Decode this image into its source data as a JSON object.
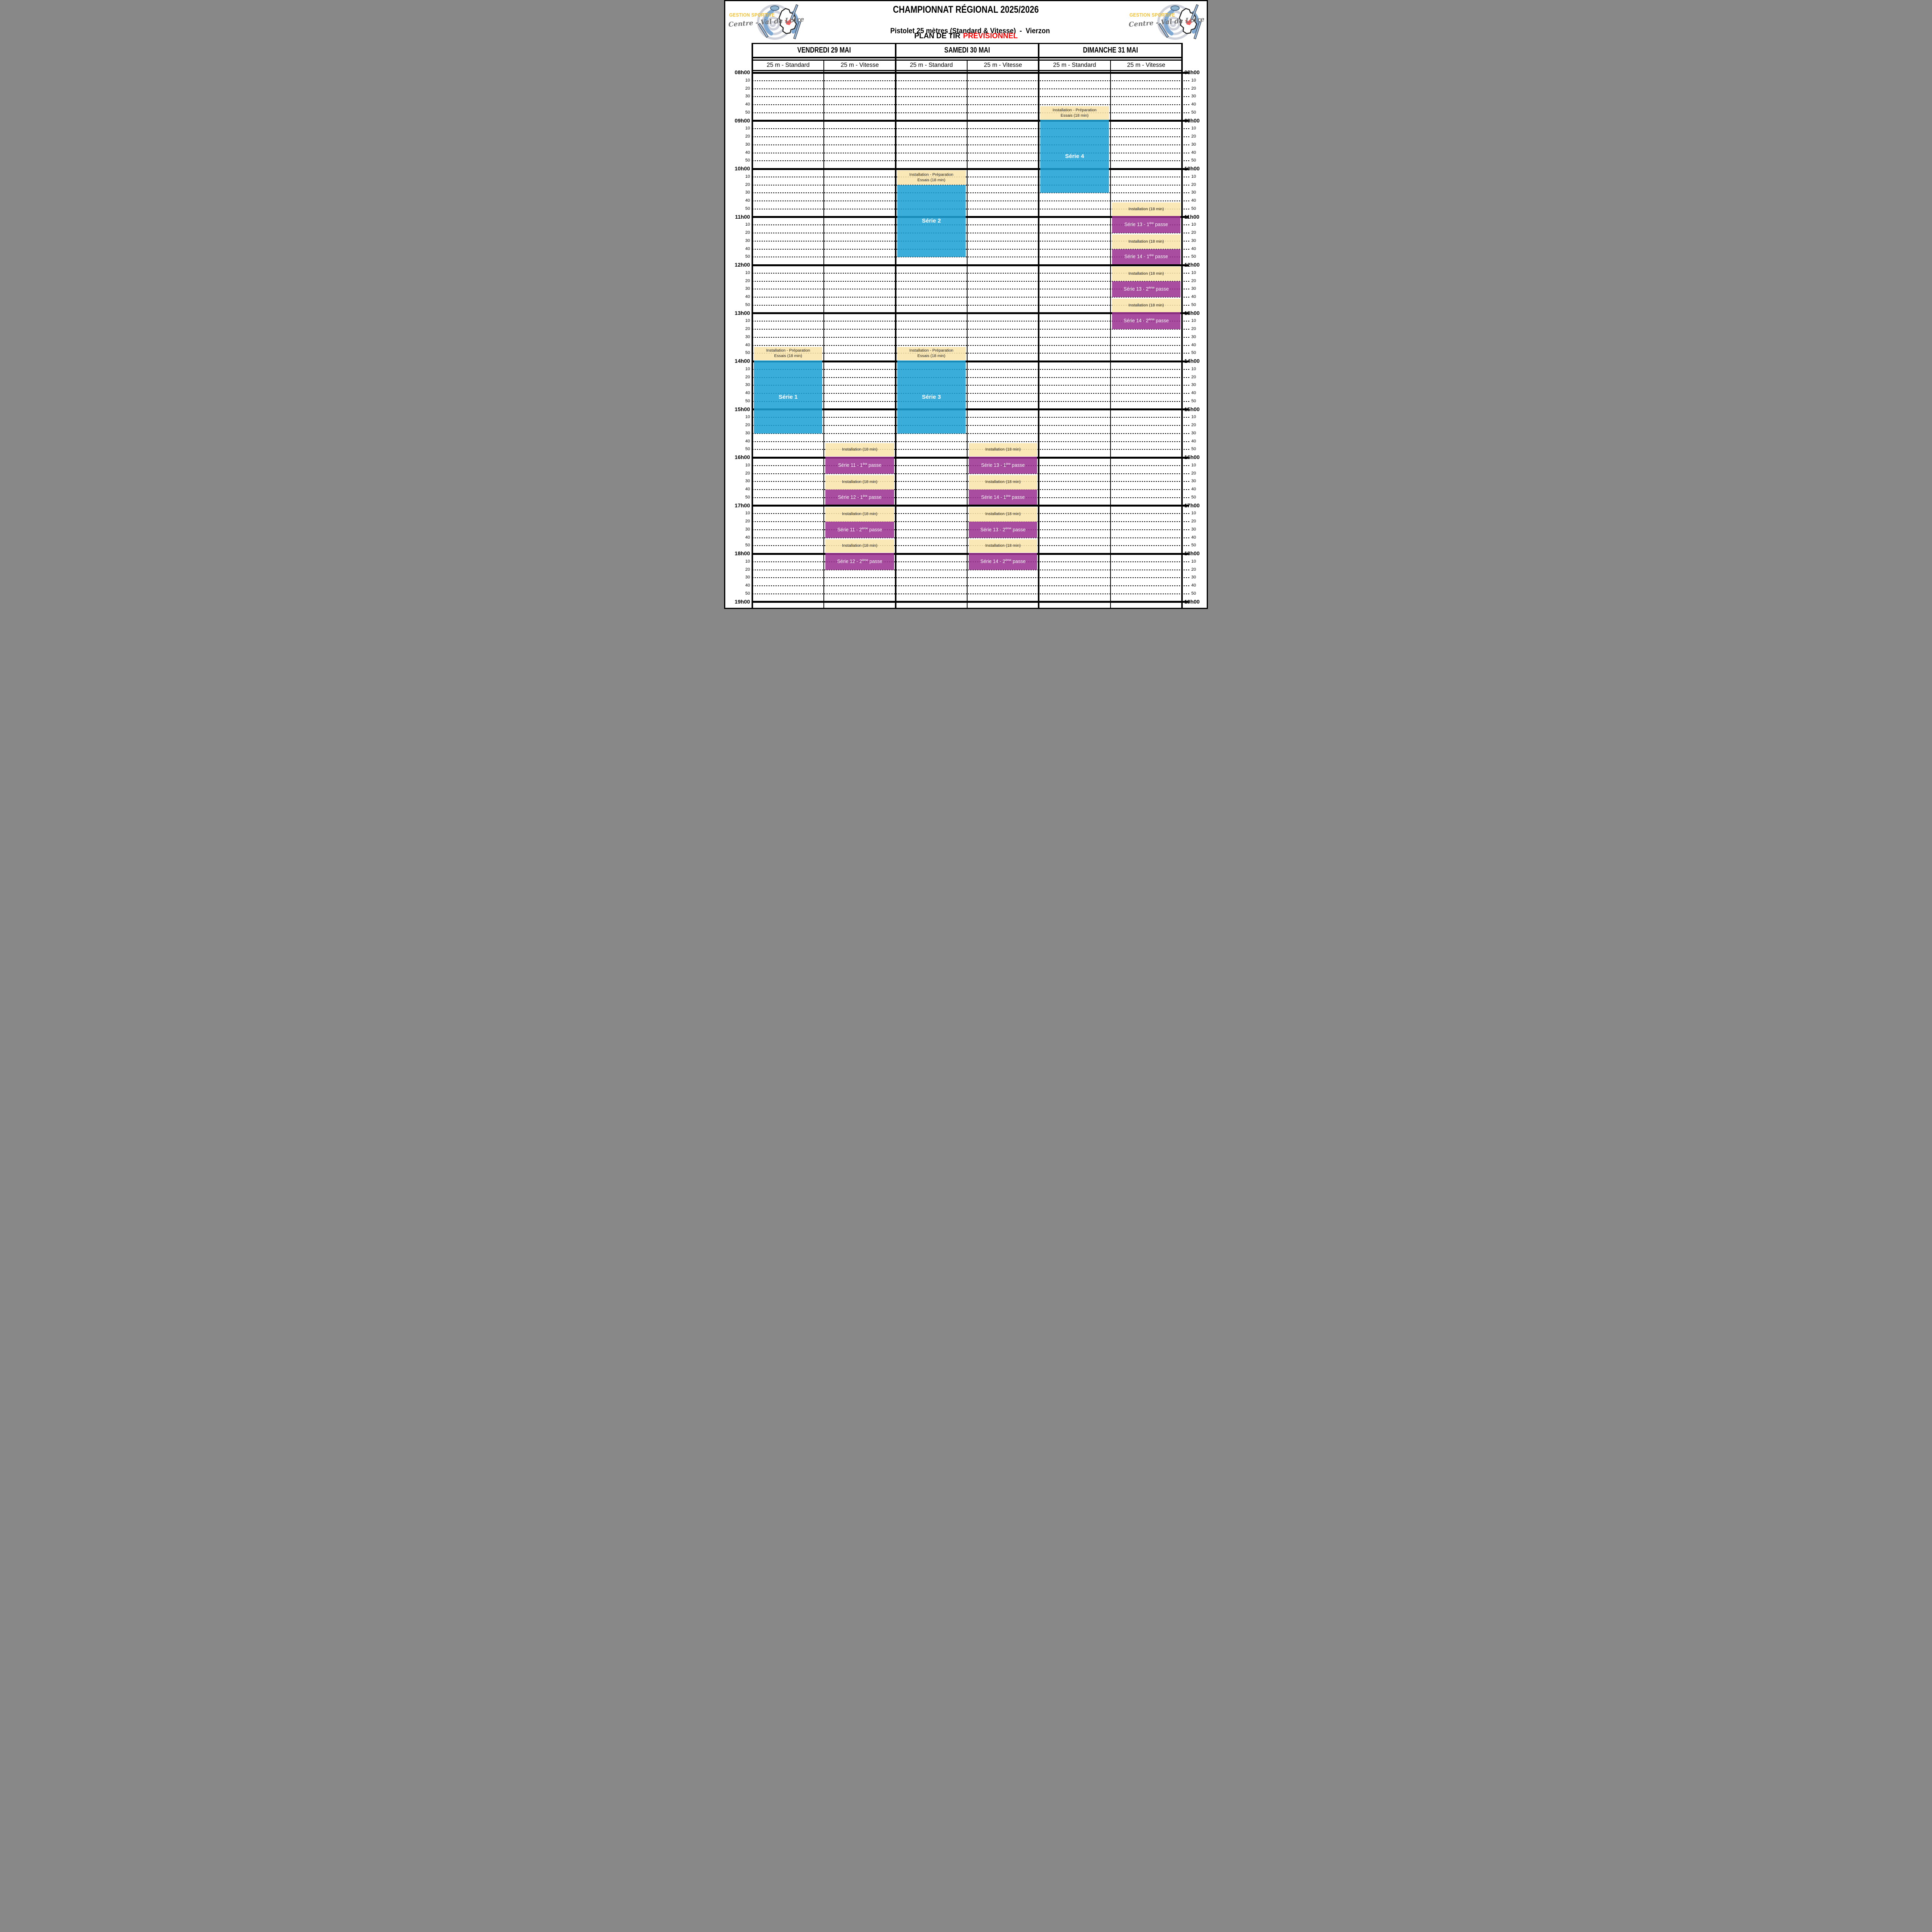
{
  "header": {
    "title": "CHAMPIONNAT RÉGIONAL 2025/2026",
    "subtitle": "Pistolet 25 mètres (Standard & Vitesse)  -  Vierzon",
    "plan_label": "PLAN DE TIR",
    "plan_status": "PRÉVISIONNEL",
    "plan_status_color": "#FF0000"
  },
  "logo": {
    "line1": "GESTION SPORTIVE",
    "line2": "Centre - Val de Loire"
  },
  "days": [
    {
      "label": "VENDREDI 29 MAI",
      "columns": [
        "25 m - Standard",
        "25 m - Vitesse"
      ]
    },
    {
      "label": "SAMEDI 30 MAI",
      "columns": [
        "25 m - Standard",
        "25 m - Vitesse"
      ]
    },
    {
      "label": "DIMANCHE 31 MAI",
      "columns": [
        "25 m - Standard",
        "25 m - Vitesse"
      ]
    }
  ],
  "time_axis": {
    "hours": [
      "08h00",
      "09h00",
      "10h00",
      "11h00",
      "12h00",
      "13h00",
      "14h00",
      "15h00",
      "16h00",
      "17h00",
      "18h00",
      "19h00"
    ],
    "minutes": [
      "10",
      "20",
      "30",
      "40",
      "50"
    ]
  },
  "colors": {
    "grid_line": "#000000",
    "serie_blue": "rgba(30,161,214,0.87)",
    "installation_cream": "rgba(249,229,172,0.87)",
    "passe_purple": "rgba(155,50,146,0.87)",
    "serie_text": "#FFFFFF",
    "installation_text": "#1A1A1A"
  },
  "schedule": [
    {
      "day": 0,
      "track": 0,
      "start": "13h42",
      "end": "14h00",
      "kind": "essais",
      "lines": [
        "Installation - Préparation",
        "Essais (18 min)"
      ]
    },
    {
      "day": 0,
      "track": 0,
      "start": "14h00",
      "end": "15h30",
      "kind": "serie",
      "label": "Série 1"
    },
    {
      "day": 0,
      "track": 1,
      "start": "15h42",
      "end": "16h00",
      "kind": "installation",
      "label": "Installation (18 min)"
    },
    {
      "day": 0,
      "track": 1,
      "start": "16h00",
      "end": "16h20",
      "kind": "passe",
      "pre": "Série 11 - 1",
      "sup": "ère",
      "tail": " passe"
    },
    {
      "day": 0,
      "track": 1,
      "start": "16h22",
      "end": "16h40",
      "kind": "installation",
      "label": "Installation (18 min)"
    },
    {
      "day": 0,
      "track": 1,
      "start": "16h40",
      "end": "17h00",
      "kind": "passe",
      "pre": "Série 12 - 1",
      "sup": "ère",
      "tail": " passe"
    },
    {
      "day": 0,
      "track": 1,
      "start": "17h02",
      "end": "17h20",
      "kind": "installation",
      "label": "Installation (18 min)"
    },
    {
      "day": 0,
      "track": 1,
      "start": "17h20",
      "end": "17h40",
      "kind": "passe",
      "pre": "Série 11 - 2",
      "sup": "ème",
      "tail": " passe"
    },
    {
      "day": 0,
      "track": 1,
      "start": "17h42",
      "end": "18h00",
      "kind": "installation",
      "label": "Installation (18 min)"
    },
    {
      "day": 0,
      "track": 1,
      "start": "18h00",
      "end": "18h20",
      "kind": "passe",
      "pre": "Série 12 - 2",
      "sup": "ème",
      "tail": " passe"
    },
    {
      "day": 1,
      "track": 0,
      "start": "10h02",
      "end": "10h20",
      "kind": "essais",
      "lines": [
        "Installation - Préparation",
        "Essais (18 min)"
      ]
    },
    {
      "day": 1,
      "track": 0,
      "start": "10h20",
      "end": "11h50",
      "kind": "serie",
      "label": "Série 2"
    },
    {
      "day": 1,
      "track": 0,
      "start": "13h42",
      "end": "14h00",
      "kind": "essais",
      "lines": [
        "Installation - Préparation",
        "Essais (18 min)"
      ]
    },
    {
      "day": 1,
      "track": 0,
      "start": "14h00",
      "end": "15h30",
      "kind": "serie",
      "label": "Série 3"
    },
    {
      "day": 1,
      "track": 1,
      "start": "15h42",
      "end": "16h00",
      "kind": "installation",
      "label": "Installation (18 min)"
    },
    {
      "day": 1,
      "track": 1,
      "start": "16h00",
      "end": "16h20",
      "kind": "passe",
      "pre": "Série 13 - 1",
      "sup": "ère",
      "tail": " passe"
    },
    {
      "day": 1,
      "track": 1,
      "start": "16h22",
      "end": "16h40",
      "kind": "installation",
      "label": "Installation (18 min)"
    },
    {
      "day": 1,
      "track": 1,
      "start": "16h40",
      "end": "17h00",
      "kind": "passe",
      "pre": "Série 14 - 1",
      "sup": "ère",
      "tail": " passe"
    },
    {
      "day": 1,
      "track": 1,
      "start": "17h02",
      "end": "17h20",
      "kind": "installation",
      "label": "Installation (18 min)"
    },
    {
      "day": 1,
      "track": 1,
      "start": "17h20",
      "end": "17h40",
      "kind": "passe",
      "pre": "Série 13 - 2",
      "sup": "ème",
      "tail": " passe"
    },
    {
      "day": 1,
      "track": 1,
      "start": "17h42",
      "end": "18h00",
      "kind": "installation",
      "label": "Installation (18 min)"
    },
    {
      "day": 1,
      "track": 1,
      "start": "18h00",
      "end": "18h20",
      "kind": "passe",
      "pre": "Série 14 - 2",
      "sup": "ème",
      "tail": " passe"
    },
    {
      "day": 2,
      "track": 0,
      "start": "08h42",
      "end": "09h00",
      "kind": "essais",
      "lines": [
        "Installation - Préparation",
        "Essais (18 min)"
      ]
    },
    {
      "day": 2,
      "track": 0,
      "start": "09h00",
      "end": "10h30",
      "kind": "serie",
      "label": "Série 4"
    },
    {
      "day": 2,
      "track": 1,
      "start": "10h42",
      "end": "11h00",
      "kind": "installation",
      "label": "Installation (18 min)"
    },
    {
      "day": 2,
      "track": 1,
      "start": "11h00",
      "end": "11h20",
      "kind": "passe",
      "pre": "Série 13 - 1",
      "sup": "ère",
      "tail": " passe"
    },
    {
      "day": 2,
      "track": 1,
      "start": "11h22",
      "end": "11h40",
      "kind": "installation",
      "label": "Installation (18 min)"
    },
    {
      "day": 2,
      "track": 1,
      "start": "11h40",
      "end": "12h00",
      "kind": "passe",
      "pre": "Série 14 - 1",
      "sup": "ère",
      "tail": " passe"
    },
    {
      "day": 2,
      "track": 1,
      "start": "12h02",
      "end": "12h20",
      "kind": "installation",
      "label": "Installation (18 min)"
    },
    {
      "day": 2,
      "track": 1,
      "start": "12h20",
      "end": "12h40",
      "kind": "passe",
      "pre": "Série 13 - 2",
      "sup": "ème",
      "tail": " passe"
    },
    {
      "day": 2,
      "track": 1,
      "start": "12h42",
      "end": "13h00",
      "kind": "installation",
      "label": "Installation (18 min)"
    },
    {
      "day": 2,
      "track": 1,
      "start": "13h00",
      "end": "13h20",
      "kind": "passe",
      "pre": "Série 14 - 2",
      "sup": "ème",
      "tail": " passe"
    }
  ]
}
